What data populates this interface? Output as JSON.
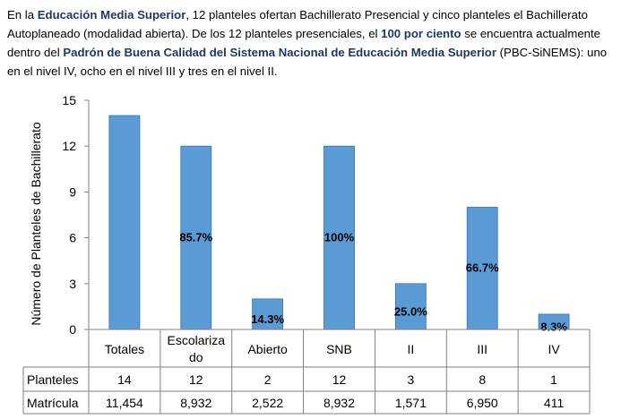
{
  "intro": {
    "t1": "En la ",
    "b1": "Educación Media Superior",
    "t2": ", 12 planteles ofertan Bachillerato Presencial y cinco planteles el Bachillerato Autoplaneado (modalidad abierta). De los 12 planteles presenciales, el ",
    "b2": "100 por ciento",
    "t3": " se encuentra actualmente dentro del ",
    "b3": "Padrón de Buena Calidad del Sistema Nacional de Educación Media Superior",
    "t4": " (PBC-SiNEMS): uno en el nivel IV, ocho en el nivel III y tres en el nivel II."
  },
  "chart_data": {
    "type": "bar",
    "categories": [
      "Totales",
      "Escolarizado",
      "Abierto",
      "SNB",
      "II",
      "III",
      "IV"
    ],
    "values": [
      14,
      12,
      2,
      12,
      3,
      8,
      1
    ],
    "bar_labels": [
      "",
      "85.7%",
      "14.3%",
      "100%",
      "25.0%",
      "66.7%",
      "8.3%"
    ],
    "ylabel": "Número de Planteles de Bachillerato",
    "ylim": [
      0,
      15
    ],
    "yticks": [
      0,
      3,
      6,
      9,
      12,
      15
    ],
    "grid": false,
    "bar_color": "#5b9bd5",
    "table": {
      "rows": [
        {
          "label": "Planteles",
          "values": [
            "14",
            "12",
            "2",
            "12",
            "3",
            "8",
            "1"
          ]
        },
        {
          "label": "Matrícula",
          "values": [
            "11,454",
            "8,932",
            "2,522",
            "8,932",
            "1,571",
            "6,950",
            "411"
          ]
        }
      ]
    }
  }
}
